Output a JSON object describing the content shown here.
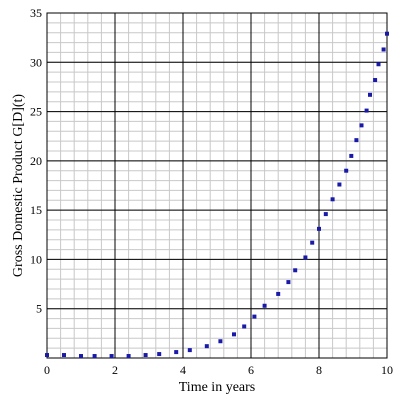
{
  "chart_data": {
    "type": "scatter",
    "title": "",
    "xlabel": "Time in years",
    "ylabel": "Gross Domestic Product G[D](t)",
    "xlim": [
      0,
      10
    ],
    "ylim": [
      0,
      35
    ],
    "x_ticks": [
      0,
      2,
      4,
      6,
      8,
      10
    ],
    "y_ticks": [
      5,
      10,
      15,
      20,
      25,
      30,
      35
    ],
    "grid": true,
    "legend": "none",
    "marker_color": "#1a1aa8",
    "series": [
      {
        "x": [
          0.0,
          0.5,
          1.0,
          1.4,
          1.9,
          2.4,
          2.9,
          3.3,
          3.8,
          4.2,
          4.7,
          5.1,
          5.5,
          5.8,
          6.1,
          6.4,
          6.8,
          7.1,
          7.3,
          7.6,
          7.8,
          8.0,
          8.2,
          8.4,
          8.6,
          8.8,
          8.95,
          9.1,
          9.25,
          9.4,
          9.5,
          9.65,
          9.75,
          9.9,
          10.0
        ],
        "y": [
          0.3,
          0.3,
          0.2,
          0.2,
          0.2,
          0.2,
          0.3,
          0.4,
          0.6,
          0.8,
          1.2,
          1.7,
          2.4,
          3.2,
          4.2,
          5.3,
          6.5,
          7.7,
          8.9,
          10.2,
          11.7,
          13.1,
          14.6,
          16.1,
          17.6,
          19.0,
          20.5,
          22.1,
          23.6,
          25.1,
          26.7,
          28.2,
          29.8,
          31.3,
          32.9
        ]
      }
    ]
  }
}
